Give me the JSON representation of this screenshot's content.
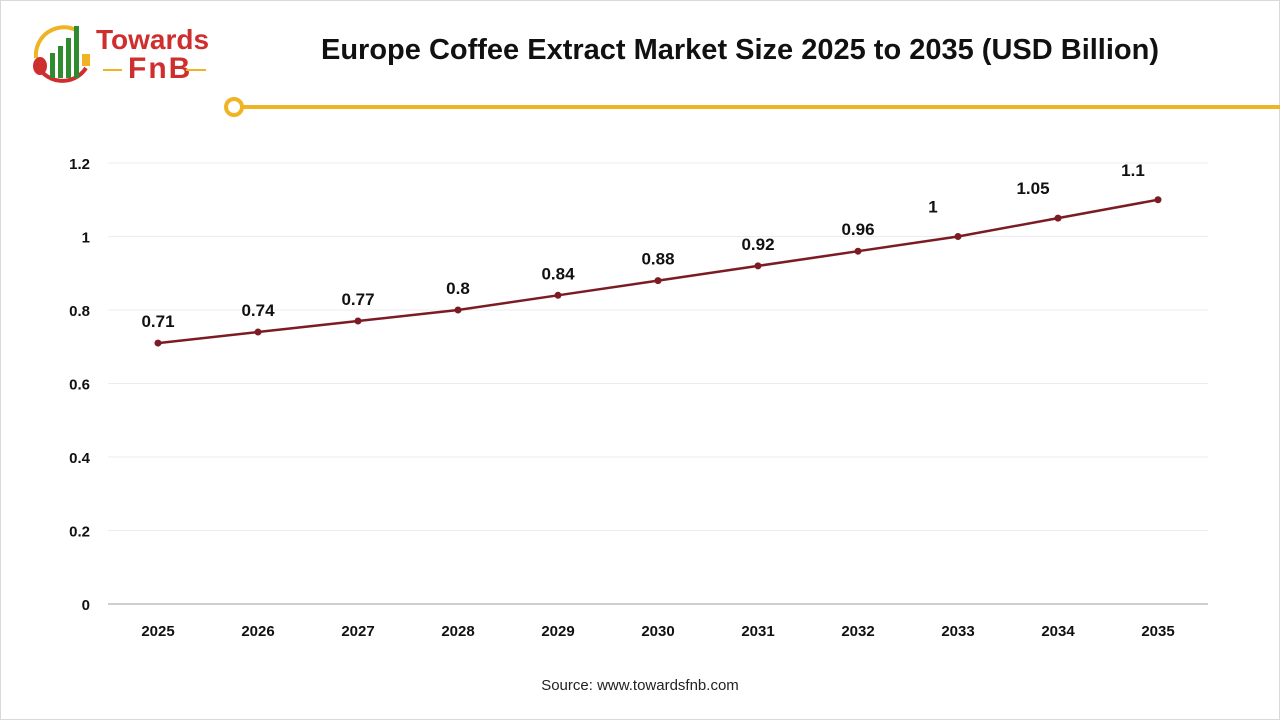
{
  "brand": {
    "line1": "Towards",
    "line2": "FnB"
  },
  "accent_color": "#f0b323",
  "line_color": "#7b1c24",
  "source": "Source: www.towardsfnb.com",
  "chart_data": {
    "type": "line",
    "title": "Europe Coffee Extract Market Size 2025 to 2035 (USD Billion)",
    "categories": [
      "2025",
      "2026",
      "2027",
      "2028",
      "2029",
      "2030",
      "2031",
      "2032",
      "2033",
      "2034",
      "2035"
    ],
    "values": [
      0.71,
      0.74,
      0.77,
      0.8,
      0.84,
      0.88,
      0.92,
      0.96,
      1,
      1.05,
      1.1
    ],
    "data_labels": [
      "0.71",
      "0.74",
      "0.77",
      "0.8",
      "0.84",
      "0.88",
      "0.92",
      "0.96",
      "1",
      "1.05",
      "1.1"
    ],
    "ylim": [
      0,
      1.2
    ],
    "yticks": [
      "0",
      "0.2",
      "0.4",
      "0.6",
      "0.8",
      "1",
      "1.2"
    ],
    "grid": true,
    "xlabel": "",
    "ylabel": ""
  }
}
